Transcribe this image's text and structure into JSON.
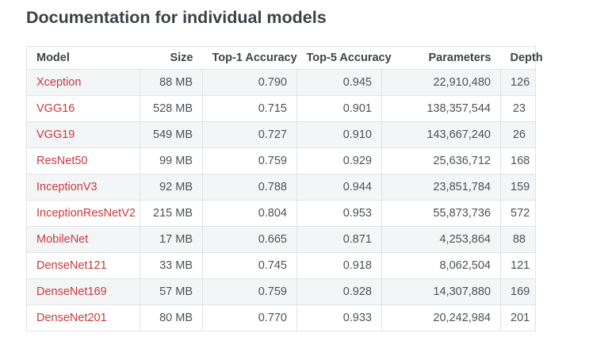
{
  "page": {
    "title": "Documentation for individual models"
  },
  "colors": {
    "link_red": "#c9393d",
    "title_text": "#3b4149",
    "table_border": "#e1e4e5",
    "row_shade": "#f3f5f6",
    "body_text": "#4e5256"
  },
  "table": {
    "columns": [
      "Model",
      "Size",
      "Top-1 Accuracy",
      "Top-5 Accuracy",
      "Parameters",
      "Depth"
    ],
    "rows": [
      {
        "model": "Xception",
        "size": "88 MB",
        "top1": "0.790",
        "top5": "0.945",
        "parameters": "22,910,480",
        "depth": "126"
      },
      {
        "model": "VGG16",
        "size": "528 MB",
        "top1": "0.715",
        "top5": "0.901",
        "parameters": "138,357,544",
        "depth": "23"
      },
      {
        "model": "VGG19",
        "size": "549 MB",
        "top1": "0.727",
        "top5": "0.910",
        "parameters": "143,667,240",
        "depth": "26"
      },
      {
        "model": "ResNet50",
        "size": "99 MB",
        "top1": "0.759",
        "top5": "0.929",
        "parameters": "25,636,712",
        "depth": "168"
      },
      {
        "model": "InceptionV3",
        "size": "92 MB",
        "top1": "0.788",
        "top5": "0.944",
        "parameters": "23,851,784",
        "depth": "159"
      },
      {
        "model": "InceptionResNetV2",
        "size": "215 MB",
        "top1": "0.804",
        "top5": "0.953",
        "parameters": "55,873,736",
        "depth": "572"
      },
      {
        "model": "MobileNet",
        "size": "17 MB",
        "top1": "0.665",
        "top5": "0.871",
        "parameters": "4,253,864",
        "depth": "88"
      },
      {
        "model": "DenseNet121",
        "size": "33 MB",
        "top1": "0.745",
        "top5": "0.918",
        "parameters": "8,062,504",
        "depth": "121"
      },
      {
        "model": "DenseNet169",
        "size": "57 MB",
        "top1": "0.759",
        "top5": "0.928",
        "parameters": "14,307,880",
        "depth": "169"
      },
      {
        "model": "DenseNet201",
        "size": "80 MB",
        "top1": "0.770",
        "top5": "0.933",
        "parameters": "20,242,984",
        "depth": "201"
      }
    ]
  }
}
